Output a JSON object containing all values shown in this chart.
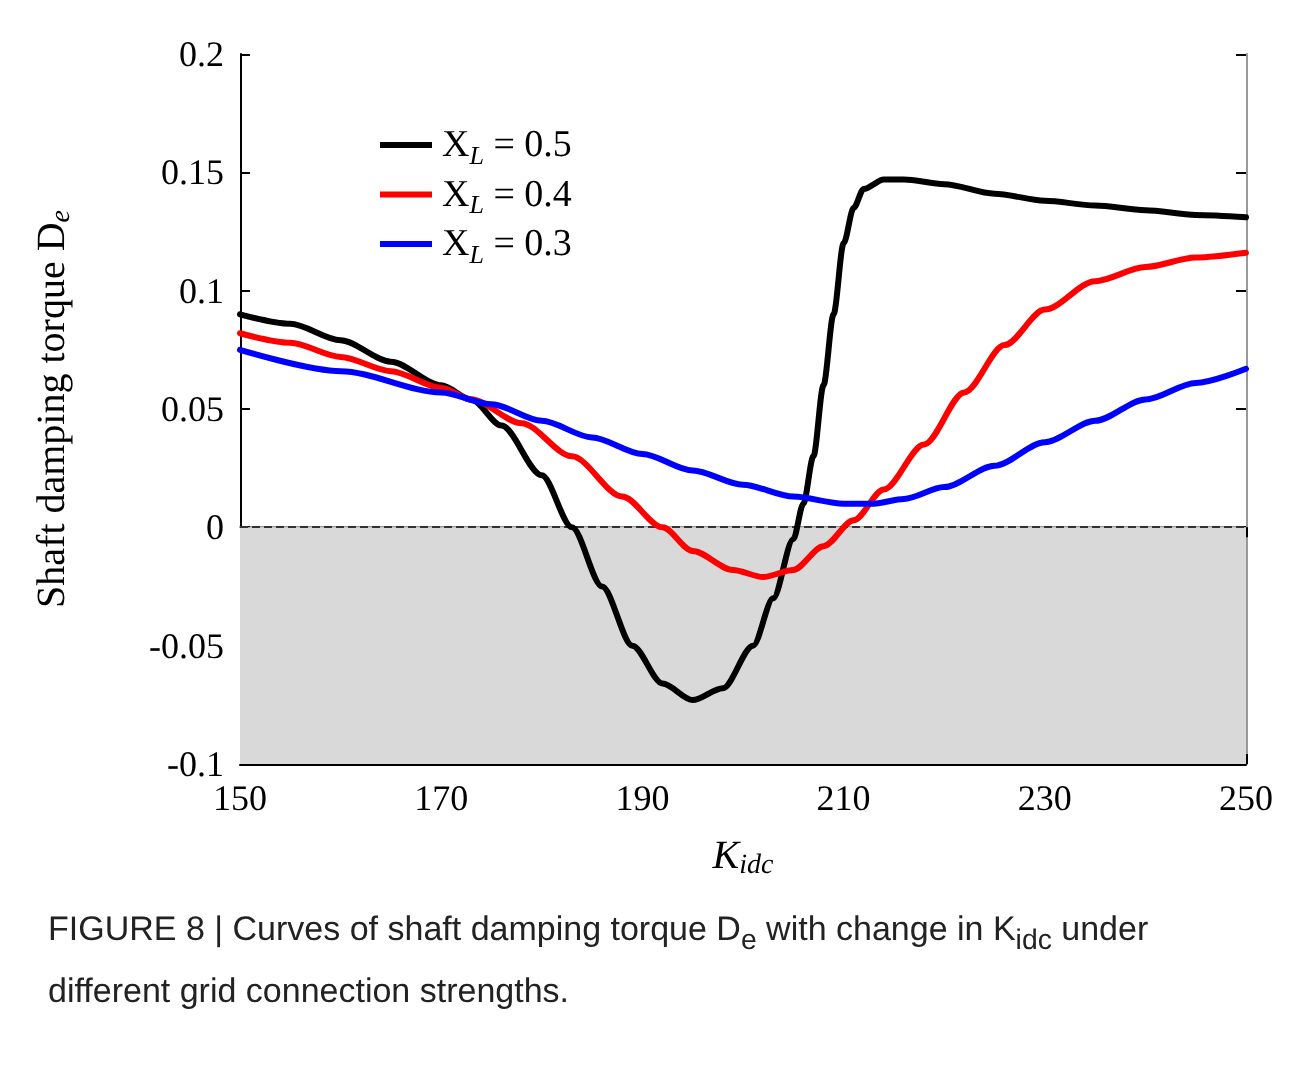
{
  "chart_data": {
    "type": "line",
    "xlabel": "K$_{idc}$",
    "ylabel": "Shaft damping torque D$_{e}$",
    "xlim": [
      150,
      250
    ],
    "xticks": [
      150,
      170,
      190,
      210,
      230,
      250
    ],
    "ylim": [
      -0.1,
      0.2
    ],
    "yticks": [
      -0.1,
      -0.05,
      0,
      0.05,
      0.1,
      0.15,
      0.2
    ],
    "grid": false,
    "legend": "top left",
    "marker": "none",
    "line_style": "solid",
    "series": [
      {
        "name": "X$_{L}$ = 0.5",
        "color": "#000000",
        "x": [
          150,
          155,
          160,
          165,
          170,
          173,
          176,
          180,
          183,
          186,
          189,
          192,
          195,
          198,
          201,
          203,
          205,
          206,
          207,
          208,
          209,
          210,
          211,
          212,
          214,
          216,
          220,
          225,
          230,
          235,
          240,
          245,
          250
        ],
        "values": [
          0.09,
          0.086,
          0.079,
          0.07,
          0.06,
          0.054,
          0.043,
          0.022,
          0.0,
          -0.025,
          -0.05,
          -0.066,
          -0.073,
          -0.068,
          -0.05,
          -0.03,
          -0.005,
          0.01,
          0.03,
          0.06,
          0.09,
          0.12,
          0.135,
          0.143,
          0.147,
          0.147,
          0.145,
          0.141,
          0.138,
          0.136,
          0.134,
          0.132,
          0.131
        ]
      },
      {
        "name": "X$_{L}$ = 0.4",
        "color": "#ff0000",
        "x": [
          150,
          155,
          160,
          165,
          170,
          173,
          178,
          183,
          188,
          192,
          195,
          199,
          202,
          205,
          208,
          211,
          214,
          218,
          222,
          226,
          230,
          235,
          240,
          245,
          250
        ],
        "values": [
          0.082,
          0.078,
          0.072,
          0.066,
          0.059,
          0.054,
          0.044,
          0.03,
          0.013,
          0.0,
          -0.01,
          -0.018,
          -0.021,
          -0.018,
          -0.008,
          0.003,
          0.016,
          0.035,
          0.057,
          0.077,
          0.092,
          0.104,
          0.11,
          0.114,
          0.116
        ]
      },
      {
        "name": "X$_{L}$ = 0.3",
        "color": "#0000ff",
        "x": [
          150,
          160,
          170,
          175,
          180,
          185,
          190,
          195,
          200,
          205,
          210,
          213,
          216,
          220,
          225,
          230,
          235,
          240,
          245,
          250
        ],
        "values": [
          0.075,
          0.066,
          0.057,
          0.052,
          0.045,
          0.038,
          0.031,
          0.024,
          0.018,
          0.013,
          0.01,
          0.01,
          0.012,
          0.017,
          0.026,
          0.036,
          0.045,
          0.054,
          0.061,
          0.067
        ]
      }
    ],
    "bands": [
      {
        "axis": "y",
        "from": -0.1,
        "to": 0,
        "color": "#d9d9d9"
      }
    ],
    "ref_lines": [
      {
        "axis": "y",
        "value": 0,
        "color": "#333333",
        "line_style": "dashed"
      }
    ],
    "annotations": [
      "FIGURE 8 | Curves of shaft damping torque D$_{e}$ with change in K$_{idc}$ under different grid connection strengths."
    ]
  }
}
